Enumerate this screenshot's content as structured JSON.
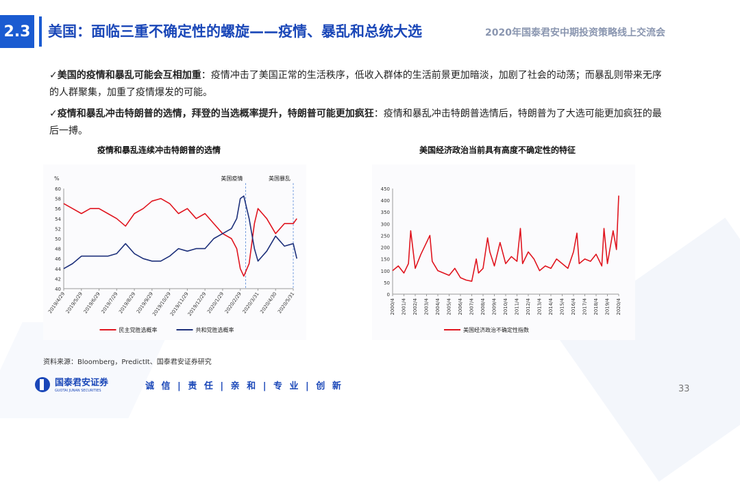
{
  "header": {
    "section_number": "2.3",
    "title": "美国：面临三重不确定性的螺旋——疫情、暴乱和总统大选",
    "event_name": "2020年国泰君安中期投资策略线上交流会"
  },
  "bullets": [
    {
      "check": "✓",
      "bold": "美国的疫情和暴乱可能会互相加重",
      "text": "：疫情冲击了美国正常的生活秩序，低收入群体的生活前景更加暗淡，加剧了社会的动荡；而暴乱则带来无序的人群聚集，加重了疫情爆发的可能。"
    },
    {
      "check": "✓",
      "bold": "疫情和暴乱冲击特朗普的选情，拜登的当选概率提升，特朗普可能更加疯狂",
      "text": "：疫情和暴乱冲击特朗普选情后，特朗普为了大选可能更加疯狂的最后一搏。"
    }
  ],
  "chart_data": [
    {
      "type": "line",
      "title": "疫情和暴乱连续冲击特朗普的选情",
      "ylabel": "%",
      "ylim": [
        40,
        60
      ],
      "yticks": [
        40,
        42,
        44,
        46,
        48,
        50,
        52,
        54,
        56,
        58,
        60
      ],
      "xticks": [
        "2019/4/29",
        "2019/5/29",
        "2019/6/29",
        "2019/7/29",
        "2019/8/29",
        "2019/9/29",
        "2019/10/29",
        "2019/11/29",
        "2019/12/29",
        "2020/1/29",
        "2020/2/29",
        "2020/3/31",
        "2020/4/30",
        "2020/5/31"
      ],
      "annotations": [
        {
          "label": "美国疫情",
          "x": 10.3
        },
        {
          "label": "美国暴乱",
          "x": 13.0
        }
      ],
      "series": [
        {
          "name": "民主党胜选概率",
          "color": "#e0141e",
          "x": [
            0,
            0.5,
            1,
            1.5,
            2,
            2.5,
            3,
            3.5,
            4,
            4.5,
            5,
            5.5,
            6,
            6.5,
            7,
            7.5,
            8,
            8.5,
            9,
            9.5,
            9.8,
            10,
            10.2,
            10.5,
            10.8,
            11,
            11.5,
            12,
            12.5,
            13,
            13.2
          ],
          "values": [
            57,
            56,
            55,
            56,
            56,
            55,
            54,
            52.5,
            55,
            56,
            57.5,
            58,
            57,
            55,
            56,
            54,
            55,
            53,
            51,
            50,
            48,
            44,
            42.5,
            45,
            53,
            56,
            54,
            51,
            53,
            53,
            54
          ]
        },
        {
          "name": "共和党胜选概率",
          "color": "#1c2f7a",
          "x": [
            0,
            0.5,
            1,
            1.5,
            2,
            2.5,
            3,
            3.5,
            4,
            4.5,
            5,
            5.5,
            6,
            6.5,
            7,
            7.5,
            8,
            8.5,
            9,
            9.5,
            9.8,
            10,
            10.2,
            10.5,
            10.8,
            11,
            11.5,
            12,
            12.5,
            13,
            13.2
          ],
          "values": [
            44,
            45,
            46.5,
            46.5,
            46.5,
            46.5,
            47,
            49,
            47,
            46,
            45.5,
            45.5,
            46.5,
            48,
            47.5,
            48,
            48,
            50,
            51,
            52,
            54,
            58,
            58.5,
            54,
            48,
            45.5,
            47.5,
            50.5,
            48.5,
            49,
            46
          ]
        }
      ]
    },
    {
      "type": "line",
      "title": "美国经济政治当前具有高度不确定性的特征",
      "ylim": [
        0,
        450
      ],
      "yticks": [
        0,
        50,
        100,
        150,
        200,
        250,
        300,
        350,
        400,
        450
      ],
      "xticks": [
        "2000/4",
        "2001/4",
        "2002/4",
        "2003/4",
        "2004/4",
        "2005/4",
        "2006/4",
        "2007/4",
        "2008/4",
        "2009/4",
        "2010/4",
        "2011/4",
        "2012/4",
        "2013/4",
        "2014/4",
        "2015/4",
        "2016/4",
        "2017/4",
        "2018/4",
        "2019/4",
        "2020/4"
      ],
      "series": [
        {
          "name": "美国经济政治不确定性指数",
          "color": "#e0141e",
          "x": [
            0,
            0.5,
            1,
            1.4,
            1.6,
            2,
            2.5,
            3,
            3.3,
            3.5,
            4,
            5,
            5.5,
            6,
            6.5,
            7,
            7.4,
            7.6,
            8,
            8.4,
            8.6,
            9,
            9.5,
            10,
            10.5,
            11,
            11.3,
            11.5,
            12,
            12.5,
            13,
            13.5,
            14,
            14.5,
            15,
            15.5,
            16,
            16.3,
            16.5,
            17,
            17.5,
            18,
            18.5,
            18.7,
            19,
            19.5,
            19.8,
            20
          ],
          "values": [
            100,
            120,
            90,
            130,
            270,
            110,
            170,
            220,
            250,
            140,
            100,
            80,
            110,
            70,
            60,
            55,
            150,
            90,
            110,
            240,
            180,
            120,
            220,
            130,
            160,
            140,
            280,
            130,
            180,
            150,
            100,
            120,
            110,
            150,
            130,
            110,
            180,
            260,
            130,
            150,
            140,
            170,
            120,
            280,
            130,
            270,
            190,
            420
          ]
        }
      ]
    }
  ],
  "source": "资料来源：Bloomberg，PredictIt、国泰君安证券研究",
  "footer": {
    "company_cn": "国泰君安证券",
    "company_en": "GUOTAI JUNAN SECURITIES",
    "slogan": "诚 信 | 责 任 | 亲 和 | 专 业 | 创 新",
    "page_number": "33"
  }
}
